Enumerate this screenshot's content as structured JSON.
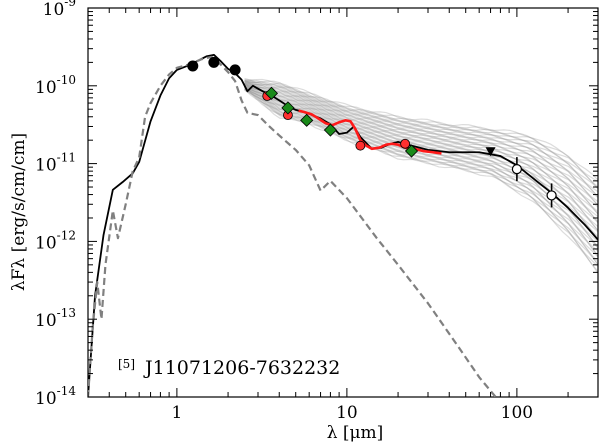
{
  "chart_data": {
    "type": "line",
    "xscale": "log",
    "yscale": "log",
    "xlim": [
      0.3,
      300
    ],
    "ylim": [
      1e-14,
      1e-09
    ],
    "xlabel": "λ [μm]",
    "ylabel": "λFλ [erg/s/cm/cm]",
    "annotation": {
      "ref": "[5]",
      "name": "J11071206-7632232",
      "position": "bottom-left"
    },
    "x_ticks": [
      {
        "value": 1,
        "label": "1"
      },
      {
        "value": 10,
        "label": "10"
      },
      {
        "value": 100,
        "label": "100"
      }
    ],
    "y_ticks": [
      {
        "value": 1e-14,
        "mant": "10",
        "exp": "-14"
      },
      {
        "value": 1e-13,
        "mant": "10",
        "exp": "-13"
      },
      {
        "value": 1e-12,
        "mant": "10",
        "exp": "-12"
      },
      {
        "value": 1e-11,
        "mant": "10",
        "exp": "-11"
      },
      {
        "value": 1e-10,
        "mant": "10",
        "exp": "-10"
      },
      {
        "value": 1e-09,
        "mant": "10",
        "exp": "-9"
      }
    ],
    "series": [
      {
        "name": "best-fit model SED",
        "style": "solid",
        "color": "#000000",
        "points": [
          [
            0.3,
            1e-14
          ],
          [
            0.33,
            2e-13
          ],
          [
            0.37,
            1.2e-12
          ],
          [
            0.42,
            4.6e-12
          ],
          [
            0.48,
            5.8e-12
          ],
          [
            0.55,
            7.5e-12
          ],
          [
            0.6,
            1.05e-11
          ],
          [
            0.7,
            3.5e-11
          ],
          [
            0.8,
            7.5e-11
          ],
          [
            0.9,
            1.25e-10
          ],
          [
            1.0,
            1.6e-10
          ],
          [
            1.15,
            1.8e-10
          ],
          [
            1.3,
            2.05e-10
          ],
          [
            1.5,
            2.4e-10
          ],
          [
            1.65,
            2.5e-10
          ],
          [
            1.8,
            2.1e-10
          ],
          [
            2.0,
            1.65e-10
          ],
          [
            2.2,
            1.45e-10
          ],
          [
            2.4,
            1.2e-10
          ],
          [
            2.6,
            8.5e-11
          ],
          [
            2.8,
            1e-10
          ],
          [
            3.2,
            8.5e-11
          ],
          [
            3.6,
            7.5e-11
          ],
          [
            4.0,
            6.5e-11
          ],
          [
            4.5,
            5.5e-11
          ],
          [
            5.0,
            4.9e-11
          ],
          [
            5.8,
            4.5e-11
          ],
          [
            7.0,
            3.8e-11
          ],
          [
            8.0,
            3.2e-11
          ],
          [
            9.0,
            2.4e-11
          ],
          [
            10.0,
            2.5e-11
          ],
          [
            11.0,
            3e-11
          ],
          [
            12.0,
            2.2e-11
          ],
          [
            14.0,
            1.55e-11
          ],
          [
            16.0,
            1.6e-11
          ],
          [
            18.0,
            1.8e-11
          ],
          [
            20.0,
            1.9e-11
          ],
          [
            24.0,
            1.7e-11
          ],
          [
            30.0,
            1.5e-11
          ],
          [
            40.0,
            1.4e-11
          ],
          [
            60.0,
            1.4e-11
          ],
          [
            80.0,
            1.25e-11
          ],
          [
            100.0,
            9.5e-12
          ],
          [
            130.0,
            6e-12
          ],
          [
            160.0,
            4.2e-12
          ],
          [
            200.0,
            2.7e-12
          ],
          [
            250.0,
            1.65e-12
          ],
          [
            300.0,
            1.05e-12
          ]
        ]
      },
      {
        "name": "stellar photosphere",
        "style": "dashed",
        "color": "#808080",
        "points": [
          [
            0.3,
            1e-14
          ],
          [
            0.32,
            8e-14
          ],
          [
            0.34,
            3e-13
          ],
          [
            0.36,
            1e-13
          ],
          [
            0.38,
            5e-13
          ],
          [
            0.42,
            2.5e-12
          ],
          [
            0.45,
            1.1e-12
          ],
          [
            0.5,
            3e-12
          ],
          [
            0.55,
            8e-12
          ],
          [
            0.6,
            1.2e-11
          ],
          [
            0.65,
            4e-11
          ],
          [
            0.7,
            6e-11
          ],
          [
            0.8,
            1e-10
          ],
          [
            0.9,
            1.4e-10
          ],
          [
            1.0,
            1.7e-10
          ],
          [
            1.2,
            1.9e-10
          ],
          [
            1.4,
            2.2e-10
          ],
          [
            1.6,
            2.35e-10
          ],
          [
            1.8,
            1.9e-10
          ],
          [
            2.0,
            1.5e-10
          ],
          [
            2.2,
            1.15e-10
          ],
          [
            2.4,
            6.5e-11
          ],
          [
            2.6,
            4.5e-11
          ],
          [
            3.0,
            4.2e-11
          ],
          [
            3.5,
            3e-11
          ],
          [
            4.0,
            2.3e-11
          ],
          [
            5.0,
            1.5e-11
          ],
          [
            6.0,
            9.5e-12
          ],
          [
            7.0,
            4.5e-12
          ],
          [
            8.0,
            6e-12
          ],
          [
            10.0,
            3.6e-12
          ],
          [
            15.0,
            1.1e-12
          ],
          [
            20.0,
            5e-13
          ],
          [
            30.0,
            1.6e-13
          ],
          [
            45.0,
            4.5e-14
          ],
          [
            60.0,
            1.8e-14
          ],
          [
            75.0,
            1e-14
          ]
        ]
      },
      {
        "name": "IRS spectrum",
        "style": "solid",
        "color": "#ff1a1a",
        "points": [
          [
            5.2,
            4.8e-11
          ],
          [
            5.6,
            4.6e-11
          ],
          [
            6.2,
            4.3e-11
          ],
          [
            6.8,
            3.8e-11
          ],
          [
            7.5,
            3.3e-11
          ],
          [
            8.2,
            3.1e-11
          ],
          [
            9.0,
            3.4e-11
          ],
          [
            9.8,
            3.6e-11
          ],
          [
            10.5,
            3.5e-11
          ],
          [
            11.2,
            2.8e-11
          ],
          [
            12.0,
            2e-11
          ],
          [
            13.0,
            1.7e-11
          ],
          [
            14.0,
            1.55e-11
          ],
          [
            15.5,
            1.6e-11
          ],
          [
            17.0,
            1.75e-11
          ],
          [
            18.5,
            1.8e-11
          ],
          [
            20.0,
            1.75e-11
          ],
          [
            22.0,
            1.6e-11
          ],
          [
            25.0,
            1.55e-11
          ],
          [
            28.0,
            1.45e-11
          ],
          [
            32.0,
            1.4e-11
          ],
          [
            36.0,
            1.35e-11
          ]
        ]
      }
    ],
    "photometry": [
      {
        "name": "black filled circles",
        "marker": "circle-filled",
        "color": "#000000",
        "points": [
          [
            1.24,
            1.8e-10
          ],
          [
            1.65,
            2e-10
          ],
          [
            2.2,
            1.6e-10
          ]
        ]
      },
      {
        "name": "red circles",
        "marker": "circle-red",
        "color": "#ff3030",
        "points": [
          [
            3.4,
            7.4e-11
          ],
          [
            4.5,
            4.2e-11
          ],
          [
            12.0,
            1.7e-11
          ],
          [
            22.0,
            1.8e-11
          ]
        ]
      },
      {
        "name": "green diamonds",
        "marker": "diamond",
        "color": "#1a8a1a",
        "points": [
          [
            3.6,
            8e-11
          ],
          [
            4.5,
            5.2e-11
          ],
          [
            5.8,
            3.6e-11
          ],
          [
            8.0,
            2.7e-11
          ],
          [
            24.0,
            1.45e-11
          ]
        ]
      },
      {
        "name": "open circles",
        "marker": "circle-open",
        "color": "#000000",
        "points": [
          [
            100.0,
            8.5e-12
          ],
          [
            160.0,
            3.9e-12
          ]
        ]
      },
      {
        "name": "upper limit",
        "marker": "triangle-down",
        "color": "#000000",
        "points": [
          [
            70.0,
            1.4e-11
          ]
        ]
      }
    ],
    "model_ensemble": {
      "description": "grey family of model SEDs",
      "color": "#9a9a9a",
      "x_start": 2.5,
      "x_end": 300,
      "upper_points": [
        [
          2.5,
          1.2e-10
        ],
        [
          4,
          1.1e-10
        ],
        [
          6,
          8e-11
        ],
        [
          10,
          5.5e-11
        ],
        [
          20,
          4e-11
        ],
        [
          40,
          3.2e-11
        ],
        [
          70,
          2.8e-11
        ],
        [
          120,
          2.3e-11
        ],
        [
          200,
          1.3e-11
        ],
        [
          300,
          6e-12
        ]
      ],
      "lower_points": [
        [
          2.5,
          9e-11
        ],
        [
          4,
          4e-11
        ],
        [
          6,
          3.3e-11
        ],
        [
          10,
          2e-11
        ],
        [
          20,
          1.2e-11
        ],
        [
          40,
          9e-12
        ],
        [
          70,
          7e-12
        ],
        [
          120,
          3.5e-12
        ],
        [
          200,
          1.2e-12
        ],
        [
          300,
          4e-13
        ]
      ]
    }
  }
}
